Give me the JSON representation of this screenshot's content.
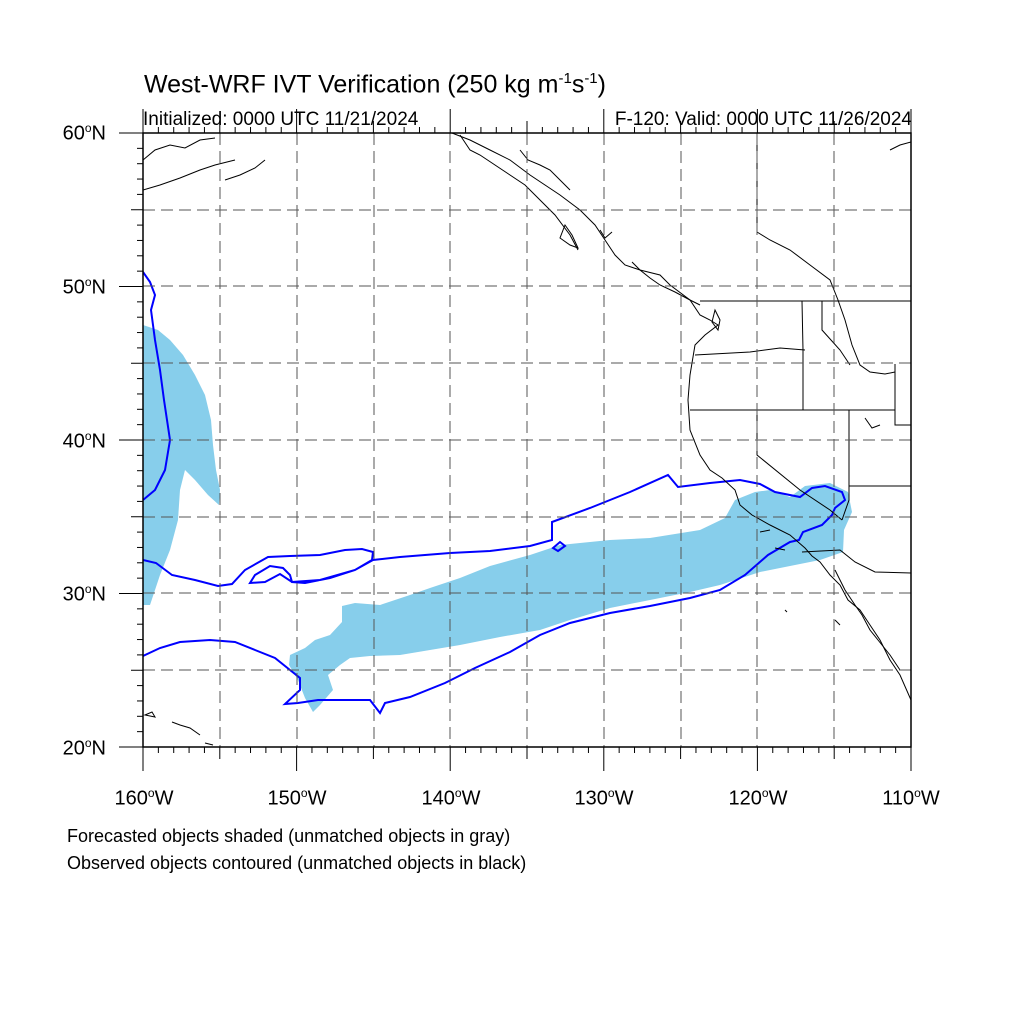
{
  "figure": {
    "title_main": "West-WRF IVT Verification (250 kg m",
    "title_exp1": "-1",
    "title_mid": "s",
    "title_exp2": "-1",
    "title_end": ")",
    "initialized": "Initialized: 0000 UTC 11/21/2024",
    "valid": "F-120: Valid: 0000 UTC 11/26/2024",
    "note_forecast": "Forecasted objects shaded (unmatched objects in gray)",
    "note_observed": "Observed objects contoured (unmatched objects in black)"
  },
  "axes": {
    "lat_labels": [
      {
        "num": "60",
        "deg": "o",
        "hem": "N"
      },
      {
        "num": "50",
        "deg": "o",
        "hem": "N"
      },
      {
        "num": "40",
        "deg": "o",
        "hem": "N"
      },
      {
        "num": "30",
        "deg": "o",
        "hem": "N"
      },
      {
        "num": "20",
        "deg": "o",
        "hem": "N"
      }
    ],
    "lon_labels": [
      {
        "num": "160",
        "deg": "o",
        "hem": "W"
      },
      {
        "num": "150",
        "deg": "o",
        "hem": "W"
      },
      {
        "num": "140",
        "deg": "o",
        "hem": "W"
      },
      {
        "num": "130",
        "deg": "o",
        "hem": "W"
      },
      {
        "num": "120",
        "deg": "o",
        "hem": "W"
      },
      {
        "num": "110",
        "deg": "o",
        "hem": "W"
      }
    ],
    "lat_range": [
      20,
      60
    ],
    "lon_range": [
      -160,
      -110
    ],
    "grid": "dashed every 5 degrees"
  },
  "colors": {
    "forecast_fill": "#87ceeb",
    "observed_contour": "#0000ff",
    "coastline": "#000000",
    "grid": "#555555"
  }
}
